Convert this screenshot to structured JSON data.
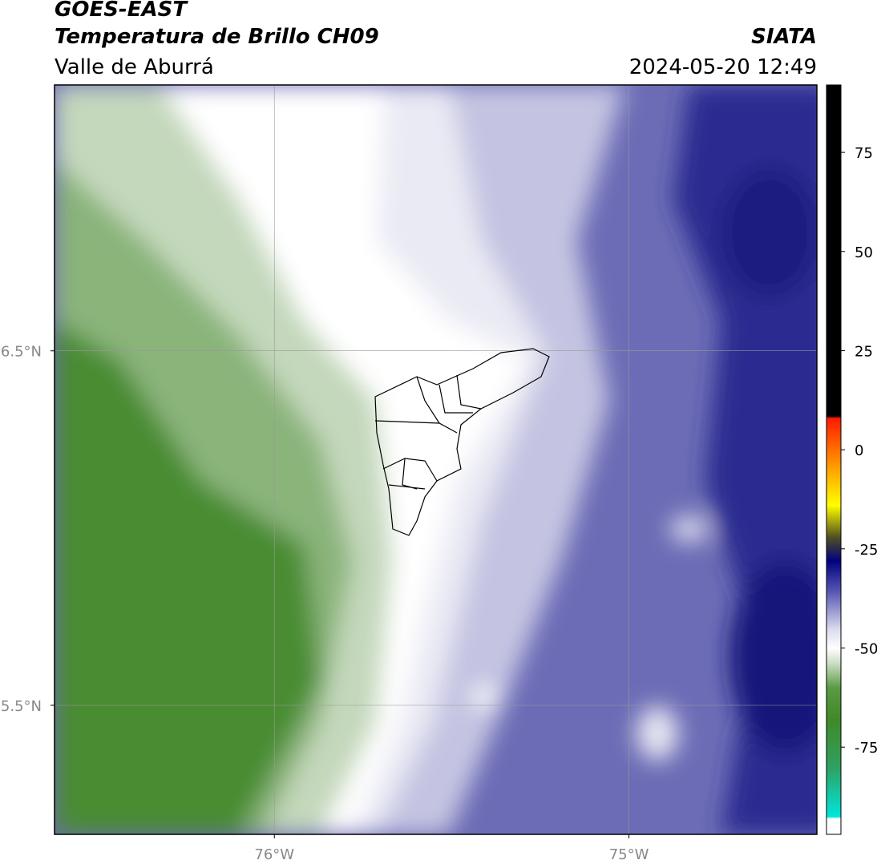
{
  "header": {
    "title": "GOES-EAST",
    "subtitle": "Temperatura de Brillo CH09",
    "region": "Valle de Aburrá",
    "source": "SIATA",
    "datetime": "2024-05-20 12:49"
  },
  "map": {
    "xlim": [
      -76.62,
      -74.47
    ],
    "ylim": [
      5.136,
      7.25
    ],
    "xticks": [
      {
        "value": -76,
        "label": "76°W"
      },
      {
        "value": -75,
        "label": "75°W"
      }
    ],
    "yticks": [
      {
        "value": 6.5,
        "label": "6.5°N"
      },
      {
        "value": 5.5,
        "label": "5.5°N"
      }
    ],
    "grid": true
  },
  "colorbar": {
    "lim": [
      -97,
      92
    ],
    "ticks": [
      75,
      50,
      25,
      0,
      -25,
      -50,
      -75
    ],
    "stops": [
      {
        "value": -97,
        "color": "#ffffff"
      },
      {
        "value": -93,
        "color": "#ffffff"
      },
      {
        "value": -92.5,
        "color": "#00e6dc"
      },
      {
        "value": -80,
        "color": "#2fa060"
      },
      {
        "value": -68,
        "color": "#3f8a28"
      },
      {
        "value": -60,
        "color": "#5a9a44"
      },
      {
        "value": -54,
        "color": "#c8dcc0"
      },
      {
        "value": -50,
        "color": "#ffffff"
      },
      {
        "value": -45,
        "color": "#d8d8ec"
      },
      {
        "value": -36,
        "color": "#5a5ab4"
      },
      {
        "value": -28,
        "color": "#000080"
      },
      {
        "value": -22,
        "color": "#505020"
      },
      {
        "value": -14,
        "color": "#ffff00"
      },
      {
        "value": -4,
        "color": "#ff9900"
      },
      {
        "value": 8,
        "color": "#ff1a00"
      },
      {
        "value": 8.5,
        "color": "#000000"
      },
      {
        "value": 92,
        "color": "#000000"
      }
    ]
  }
}
